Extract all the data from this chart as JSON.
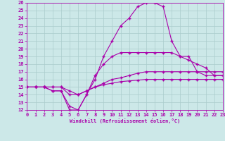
{
  "xlabel": "Windchill (Refroidissement éolien,°C)",
  "bg_color": "#cce8e8",
  "grid_color": "#aacccc",
  "line_color": "#aa00aa",
  "xmin": 0,
  "xmax": 23,
  "ymin": 12,
  "ymax": 26,
  "line1_x": [
    0,
    1,
    2,
    3,
    4,
    5,
    6,
    7,
    8,
    9,
    10,
    11,
    12,
    13,
    14,
    15,
    16,
    17,
    18,
    19,
    20,
    21,
    22,
    23
  ],
  "line1_y": [
    15,
    15,
    15,
    14.5,
    14.5,
    12,
    12,
    14,
    16.5,
    18,
    19,
    19.5,
    19.5,
    19.5,
    19.5,
    19.5,
    19.5,
    19.5,
    19,
    18.5,
    18,
    17.5,
    16.5,
    16.5
  ],
  "line2_x": [
    0,
    1,
    2,
    3,
    4,
    5,
    6,
    7,
    8,
    9,
    10,
    11,
    12,
    13,
    14,
    15,
    16,
    17,
    18,
    19,
    20,
    21,
    22,
    23
  ],
  "line2_y": [
    15,
    15,
    15,
    14.5,
    14.5,
    12.5,
    12,
    14,
    16,
    19,
    21,
    23,
    24,
    25.5,
    26,
    26,
    25.5,
    21,
    19,
    19,
    17,
    16.5,
    16.5,
    16.5
  ],
  "line3_x": [
    0,
    1,
    2,
    3,
    4,
    5,
    6,
    7,
    8,
    9,
    10,
    11,
    12,
    13,
    14,
    15,
    16,
    17,
    18,
    19,
    20,
    21,
    22,
    23
  ],
  "line3_y": [
    15,
    15,
    15,
    15,
    15,
    14,
    14,
    14.5,
    15,
    15.5,
    16,
    16.2,
    16.5,
    16.8,
    17,
    17,
    17,
    17,
    17,
    17,
    17,
    17,
    17,
    17
  ],
  "line4_x": [
    0,
    1,
    2,
    3,
    4,
    5,
    6,
    7,
    8,
    9,
    10,
    11,
    12,
    13,
    14,
    15,
    16,
    17,
    18,
    19,
    20,
    21,
    22,
    23
  ],
  "line4_y": [
    15,
    15,
    15,
    15,
    15,
    14.5,
    14,
    14.5,
    15,
    15.3,
    15.5,
    15.7,
    15.8,
    15.9,
    16,
    16,
    16,
    16,
    16,
    16,
    16,
    16,
    16,
    16
  ]
}
